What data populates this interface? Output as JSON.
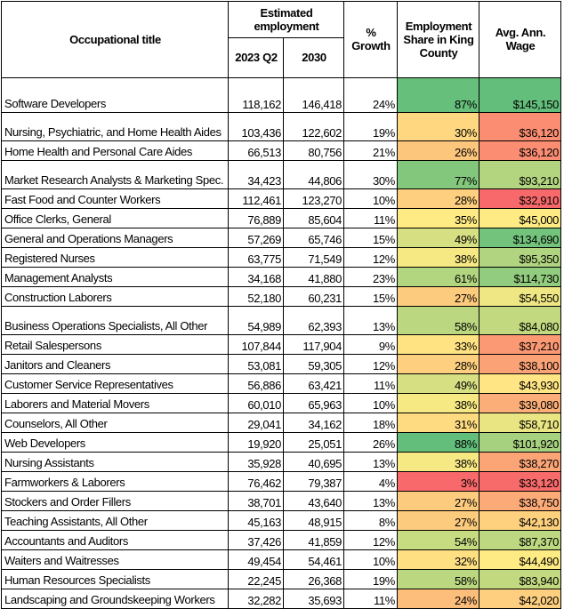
{
  "headers": {
    "title": "Occupational title",
    "estimated": "Estimated employment",
    "y2023": "2023 Q2",
    "y2030": "2030",
    "growth": "% Growth",
    "share": "Employment Share in King County",
    "wage": "Avg. Ann. Wage"
  },
  "color_scale": {
    "low": "#F8696B",
    "mid": "#FFEB84",
    "high": "#63BE7B",
    "midpoint": "50th percentile"
  },
  "rows": [
    {
      "title": "Software Developers",
      "e2023": "118,162",
      "e2030": "146,418",
      "growth": "24%",
      "share": "87%",
      "wage": "$145,150"
    },
    {
      "title": "Nursing, Psychiatric, and Home Health Aides",
      "e2023": "103,436",
      "e2030": "122,602",
      "growth": "19%",
      "share": "30%",
      "wage": "$36,120"
    },
    {
      "title": "Home Health and Personal Care Aides",
      "e2023": "66,513",
      "e2030": "80,756",
      "growth": "21%",
      "share": "26%",
      "wage": "$36,120"
    },
    {
      "title": "Market Research Analysts & Marketing Spec.",
      "e2023": "34,423",
      "e2030": "44,806",
      "growth": "30%",
      "share": "77%",
      "wage": "$93,210"
    },
    {
      "title": "Fast Food and Counter Workers",
      "e2023": "112,461",
      "e2030": "123,270",
      "growth": "10%",
      "share": "28%",
      "wage": "$32,910"
    },
    {
      "title": "Office Clerks, General",
      "e2023": "76,889",
      "e2030": "85,604",
      "growth": "11%",
      "share": "35%",
      "wage": "$45,000"
    },
    {
      "title": "General and Operations Managers",
      "e2023": "57,269",
      "e2030": "65,746",
      "growth": "15%",
      "share": "49%",
      "wage": "$134,690"
    },
    {
      "title": "Registered Nurses",
      "e2023": "63,775",
      "e2030": "71,549",
      "growth": "12%",
      "share": "38%",
      "wage": "$95,350"
    },
    {
      "title": "Management Analysts",
      "e2023": "34,168",
      "e2030": "41,880",
      "growth": "23%",
      "share": "61%",
      "wage": "$114,730"
    },
    {
      "title": "Construction Laborers",
      "e2023": "52,180",
      "e2030": "60,231",
      "growth": "15%",
      "share": "27%",
      "wage": "$54,550"
    },
    {
      "title": "Business Operations Specialists, All Other",
      "e2023": "54,989",
      "e2030": "62,393",
      "growth": "13%",
      "share": "58%",
      "wage": "$84,080"
    },
    {
      "title": "Retail Salespersons",
      "e2023": "107,844",
      "e2030": "117,904",
      "growth": "9%",
      "share": "33%",
      "wage": "$37,210"
    },
    {
      "title": "Janitors and Cleaners",
      "e2023": "53,081",
      "e2030": "59,305",
      "growth": "12%",
      "share": "28%",
      "wage": "$38,100"
    },
    {
      "title": "Customer Service Representatives",
      "e2023": "56,886",
      "e2030": "63,421",
      "growth": "11%",
      "share": "49%",
      "wage": "$43,930"
    },
    {
      "title": "Laborers and Material Movers",
      "e2023": "60,010",
      "e2030": "65,963",
      "growth": "10%",
      "share": "38%",
      "wage": "$39,080"
    },
    {
      "title": "Counselors, All Other",
      "e2023": "29,041",
      "e2030": "34,162",
      "growth": "18%",
      "share": "31%",
      "wage": "$58,710"
    },
    {
      "title": "Web Developers",
      "e2023": "19,920",
      "e2030": "25,051",
      "growth": "26%",
      "share": "88%",
      "wage": "$101,920"
    },
    {
      "title": "Nursing Assistants",
      "e2023": "35,928",
      "e2030": "40,695",
      "growth": "13%",
      "share": "38%",
      "wage": "$38,270"
    },
    {
      "title": "Farmworkers & Laborers",
      "e2023": "76,462",
      "e2030": "79,387",
      "growth": "4%",
      "share": "3%",
      "wage": "$33,120"
    },
    {
      "title": "Stockers and Order Fillers",
      "e2023": "38,701",
      "e2030": "43,640",
      "growth": "13%",
      "share": "27%",
      "wage": "$38,750"
    },
    {
      "title": "Teaching Assistants, All Other",
      "e2023": "45,163",
      "e2030": "48,915",
      "growth": "8%",
      "share": "27%",
      "wage": "$42,130"
    },
    {
      "title": "Accountants and Auditors",
      "e2023": "37,426",
      "e2030": "41,859",
      "growth": "12%",
      "share": "54%",
      "wage": "$87,370"
    },
    {
      "title": "Waiters and Waitresses",
      "e2023": "49,454",
      "e2030": "54,461",
      "growth": "10%",
      "share": "32%",
      "wage": "$44,490"
    },
    {
      "title": "Human Resources Specialists",
      "e2023": "22,245",
      "e2030": "26,368",
      "growth": "19%",
      "share": "58%",
      "wage": "$83,940"
    },
    {
      "title": "Landscaping and Groundskeeping Workers",
      "e2023": "32,282",
      "e2030": "35,693",
      "growth": "11%",
      "share": "24%",
      "wage": "$42,020"
    }
  ]
}
